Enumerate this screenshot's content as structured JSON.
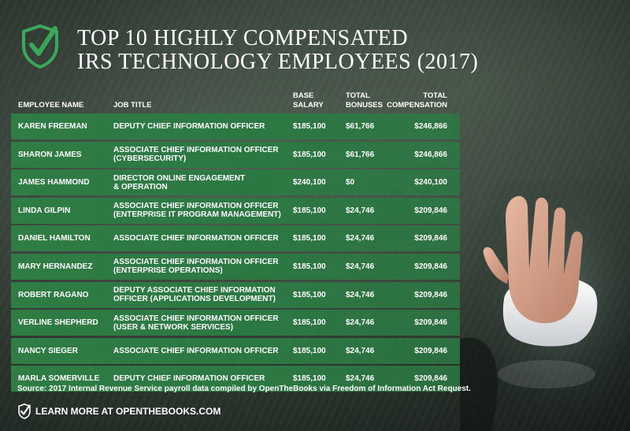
{
  "title": {
    "line1": "TOP 10 HIGHLY COMPENSATED",
    "line2": "IRS TECHNOLOGY EMPLOYEES (2017)"
  },
  "columns": {
    "name": "EMPLOYEE NAME",
    "job": "JOB TITLE",
    "base_1": "BASE",
    "base_2": "SALARY",
    "bonus_1": "TOTAL",
    "bonus_2": "BONUSES",
    "total_1": "TOTAL",
    "total_2": "COMPENSATION"
  },
  "rows": [
    {
      "name": "KAREN FREEMAN",
      "job_line1": "DEPUTY CHIEF INFORMATION OFFICER",
      "job_line2": "",
      "base": "$185,100",
      "bonus": "$61,766",
      "total": "$246,866"
    },
    {
      "name": "SHARON JAMES",
      "job_line1": "ASSOCIATE CHIEF INFORMATION OFFICER",
      "job_line2": "(CYBERSECURITY)",
      "base": "$185,100",
      "bonus": "$61,766",
      "total": "$246,866"
    },
    {
      "name": "JAMES HAMMOND",
      "job_line1": "DIRECTOR ONLINE ENGAGEMENT",
      "job_line2": "& OPERATION",
      "base": "$240,100",
      "bonus": "$0",
      "total": "$240,100"
    },
    {
      "name": "LINDA GILPIN",
      "job_line1": "ASSOCIATE CHIEF INFORMATION OFFICER",
      "job_line2": "(ENTERPRISE IT PROGRAM MANAGEMENT)",
      "base": "$185,100",
      "bonus": "$24,746",
      "total": "$209,846"
    },
    {
      "name": "DANIEL HAMILTON",
      "job_line1": "ASSOCIATE CHIEF INFORMATION OFFICER",
      "job_line2": "",
      "base": "$185,100",
      "bonus": "$24,746",
      "total": "$209,846"
    },
    {
      "name": "MARY HERNANDEZ",
      "job_line1": "ASSOCIATE CHIEF INFORMATION OFFICER",
      "job_line2": "(ENTERPRISE OPERATIONS)",
      "base": "$185,100",
      "bonus": "$24,746",
      "total": "$209,846"
    },
    {
      "name": "ROBERT RAGANO",
      "job_line1": "DEPUTY ASSOCIATE CHIEF INFORMATION",
      "job_line2": "OFFICER (APPLICATIONS DEVELOPMENT)",
      "base": "$185,100",
      "bonus": "$24,746",
      "total": "$209,846"
    },
    {
      "name": "VERLINE SHEPHERD",
      "job_line1": "ASSOCIATE CHIEF INFORMATION OFFICER",
      "job_line2": "(USER & NETWORK SERVICES)",
      "base": "$185,100",
      "bonus": "$24,746",
      "total": "$209,846"
    },
    {
      "name": "NANCY SIEGER",
      "job_line1": "ASSOCIATE CHIEF INFORMATION OFFICER",
      "job_line2": "",
      "base": "$185,100",
      "bonus": "$24,746",
      "total": "$209,846"
    },
    {
      "name": "MARLA SOMERVILLE",
      "job_line1": "DEPUTY CHIEF INFORMATION OFFICER",
      "job_line2": "",
      "base": "$185,100",
      "bonus": "$24,746",
      "total": "$209,846"
    }
  ],
  "source": "Source: 2017 Internal Revenue Service payroll data compiled by OpenTheBooks via Freedom of Information Act Request.",
  "learn_more": "LEARN MORE AT OPENTHEBOOKS.COM",
  "icons": {
    "logo": "shield-check-icon",
    "footer": "shield-check-icon",
    "photo": "hand-on-mouse-photo"
  },
  "colors": {
    "row_green": "#2f7c45",
    "logo_green": "#3aa85a"
  }
}
